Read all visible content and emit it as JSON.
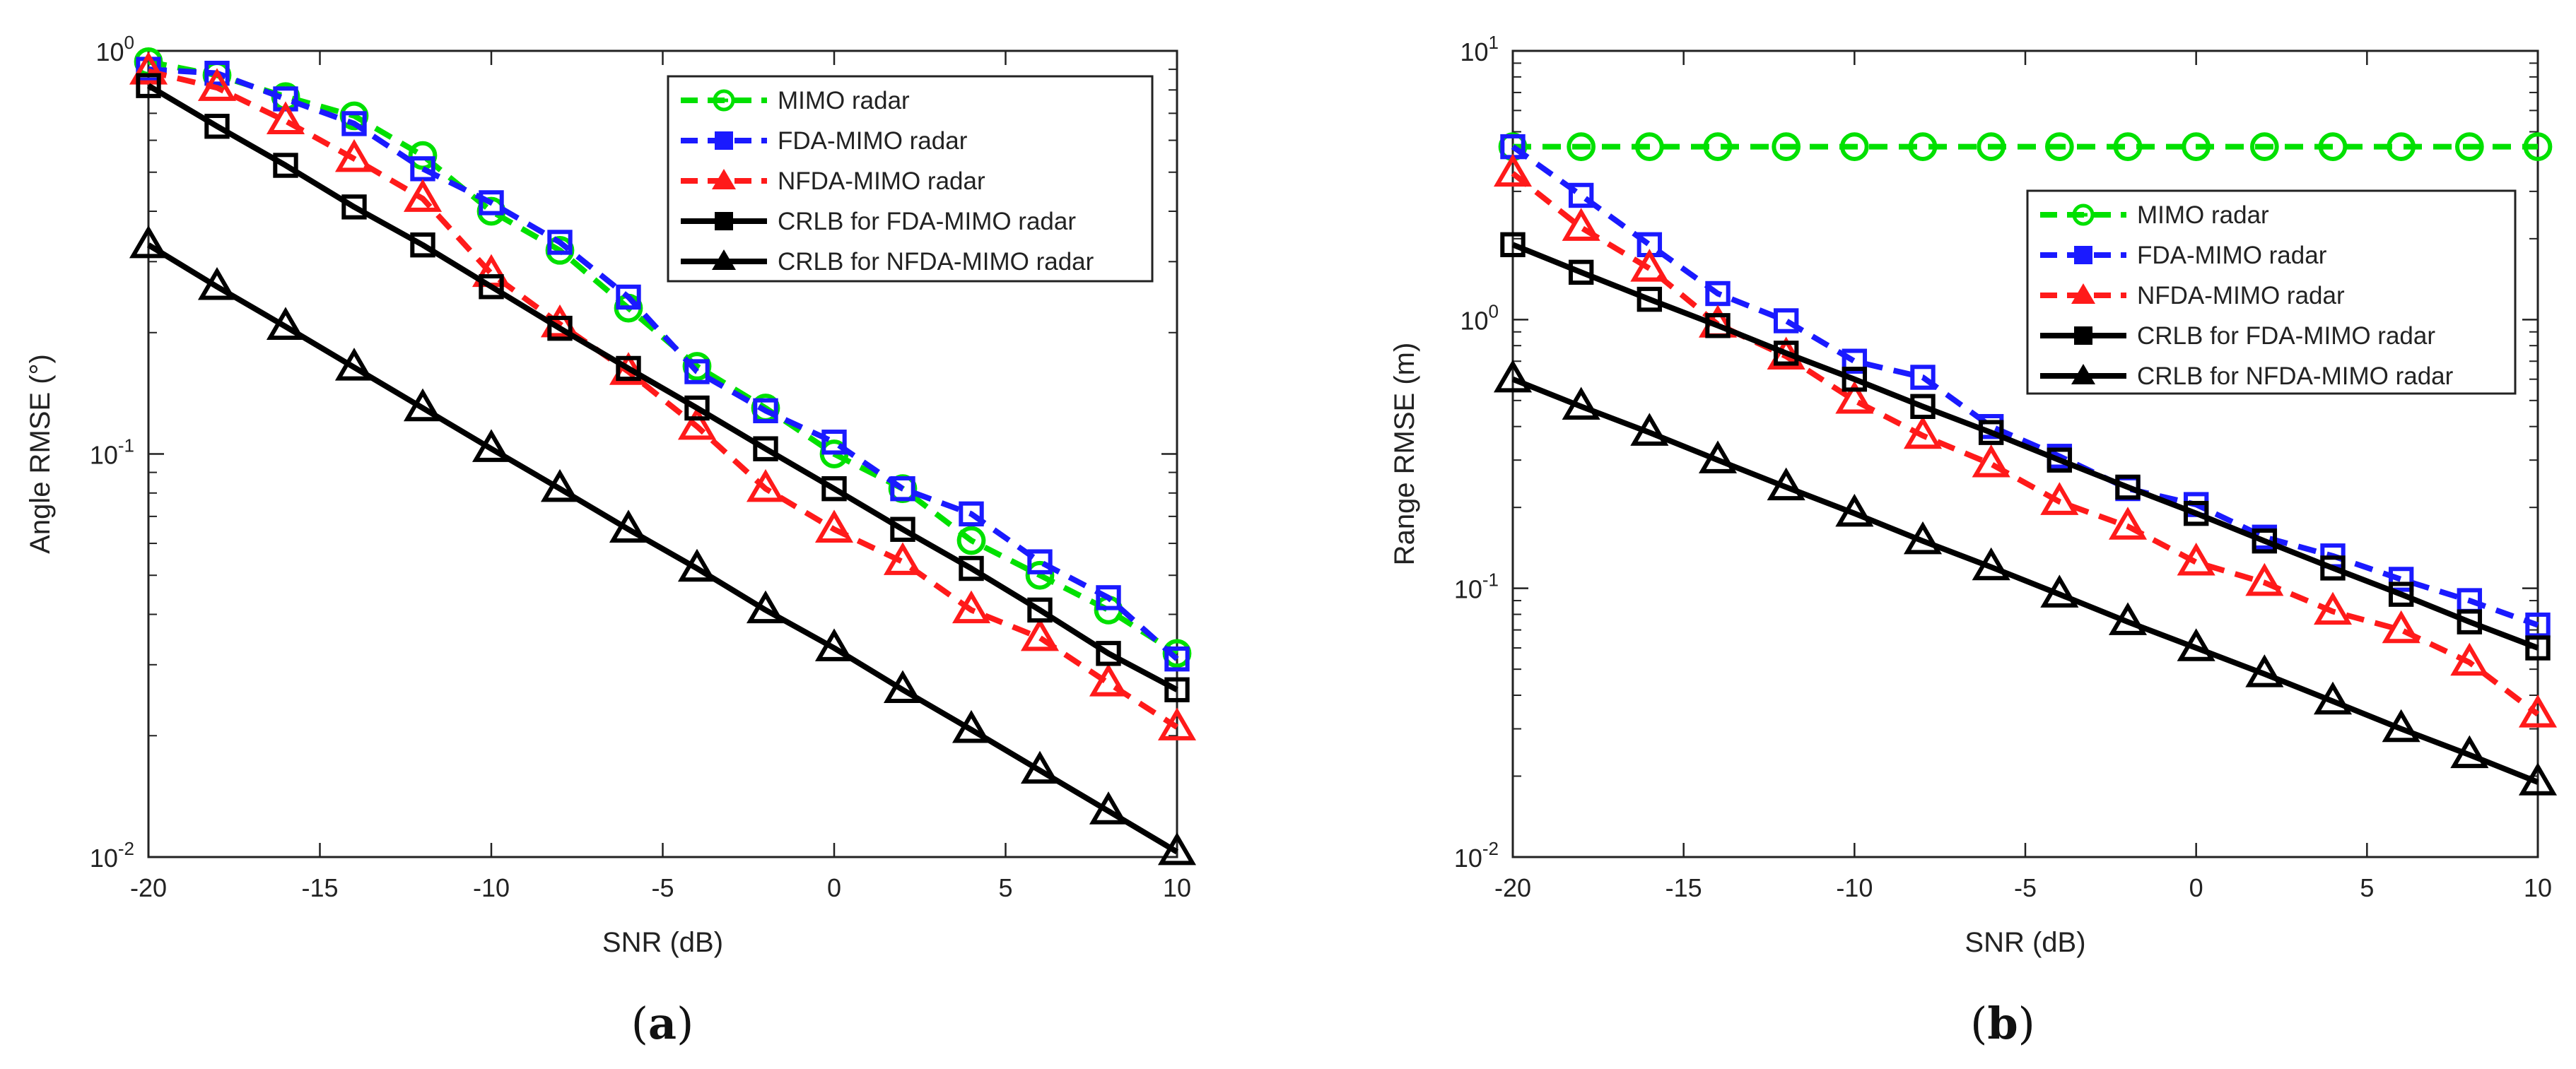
{
  "chart_data": [
    {
      "type": "line",
      "panel_label": "(a)",
      "xlabel": "SNR (dB)",
      "ylabel": "Angle RMSE (°)",
      "xlim": [
        -20,
        10
      ],
      "ylim": [
        0.01,
        1
      ],
      "yscale": "log",
      "grid": false,
      "legend_position": "top-right",
      "x_ticks": [
        -20,
        -15,
        -10,
        -5,
        0,
        5,
        10
      ],
      "x_tick_labels": [
        "-20",
        "-15",
        "-10",
        "-5",
        "0",
        "5",
        "10"
      ],
      "y_ticks": [
        {
          "value": 1,
          "base": "10",
          "exponent": "0"
        },
        {
          "value": 0.1,
          "base": "10",
          "exponent": "-1"
        },
        {
          "value": 0.01,
          "base": "10",
          "exponent": "-2"
        }
      ],
      "x": [
        -20,
        -18,
        -16,
        -14,
        -12,
        -10,
        -8,
        -6,
        -4,
        -2,
        0,
        2,
        4,
        6,
        8,
        10
      ],
      "series": [
        {
          "name": "MIMO radar",
          "color": "#00e000",
          "line_style": "dashed",
          "marker": "circle",
          "values": [
            0.94,
            0.87,
            0.77,
            0.69,
            0.55,
            0.4,
            0.32,
            0.23,
            0.165,
            0.13,
            0.1,
            0.082,
            0.061,
            0.05,
            0.041,
            0.032
          ]
        },
        {
          "name": "FDA-MIMO radar",
          "color": "#1a1aff",
          "line_style": "dashed",
          "marker": "square",
          "values": [
            0.9,
            0.88,
            0.76,
            0.66,
            0.51,
            0.42,
            0.335,
            0.245,
            0.16,
            0.128,
            0.107,
            0.082,
            0.071,
            0.054,
            0.044,
            0.031
          ]
        },
        {
          "name": "NFDA-MIMO radar",
          "color": "#ff1a1a",
          "line_style": "dashed",
          "marker": "triangle",
          "values": [
            0.89,
            0.81,
            0.67,
            0.54,
            0.43,
            0.28,
            0.21,
            0.16,
            0.117,
            0.082,
            0.065,
            0.054,
            0.041,
            0.035,
            0.027,
            0.021
          ]
        },
        {
          "name": "CRLB for FDA-MIMO radar",
          "color": "#000000",
          "line_style": "solid",
          "marker": "square",
          "values": [
            0.82,
            0.65,
            0.52,
            0.41,
            0.33,
            0.26,
            0.205,
            0.163,
            0.13,
            0.103,
            0.082,
            0.065,
            0.052,
            0.041,
            0.032,
            0.026
          ]
        },
        {
          "name": "CRLB for NFDA-MIMO radar",
          "color": "#000000",
          "line_style": "solid",
          "marker": "triangle",
          "values": [
            0.33,
            0.26,
            0.207,
            0.164,
            0.13,
            0.103,
            0.082,
            0.065,
            0.052,
            0.041,
            0.033,
            0.026,
            0.0207,
            0.0164,
            0.013,
            0.0103
          ]
        }
      ]
    },
    {
      "type": "line",
      "panel_label": "(b)",
      "xlabel": "SNR (dB)",
      "ylabel": "Range RMSE (m)",
      "xlim": [
        -20,
        10
      ],
      "ylim": [
        0.01,
        10
      ],
      "yscale": "log",
      "grid": false,
      "legend_position": "right",
      "x_ticks": [
        -20,
        -15,
        -10,
        -5,
        0,
        5,
        10
      ],
      "x_tick_labels": [
        "-20",
        "-15",
        "-10",
        "-5",
        "0",
        "5",
        "10"
      ],
      "y_ticks": [
        {
          "value": 10,
          "base": "10",
          "exponent": "1"
        },
        {
          "value": 1,
          "base": "10",
          "exponent": "0"
        },
        {
          "value": 0.1,
          "base": "10",
          "exponent": "-1"
        },
        {
          "value": 0.01,
          "base": "10",
          "exponent": "-2"
        }
      ],
      "x": [
        -20,
        -18,
        -16,
        -14,
        -12,
        -10,
        -8,
        -6,
        -4,
        -2,
        0,
        2,
        4,
        6,
        8,
        10
      ],
      "series": [
        {
          "name": "MIMO radar",
          "color": "#00e000",
          "line_style": "dashed",
          "marker": "circle",
          "values": [
            4.4,
            4.4,
            4.4,
            4.4,
            4.4,
            4.4,
            4.4,
            4.4,
            4.4,
            4.4,
            4.4,
            4.4,
            4.4,
            4.4,
            4.4,
            4.4
          ]
        },
        {
          "name": "FDA-MIMO radar",
          "color": "#1a1aff",
          "line_style": "dashed",
          "marker": "square",
          "values": [
            4.4,
            2.9,
            1.9,
            1.25,
            0.99,
            0.7,
            0.61,
            0.4,
            0.31,
            0.235,
            0.205,
            0.155,
            0.132,
            0.108,
            0.09,
            0.073
          ]
        },
        {
          "name": "NFDA-MIMO radar",
          "color": "#ff1a1a",
          "line_style": "dashed",
          "marker": "triangle",
          "values": [
            3.5,
            2.2,
            1.55,
            0.96,
            0.73,
            0.5,
            0.37,
            0.29,
            0.21,
            0.17,
            0.125,
            0.105,
            0.082,
            0.07,
            0.053,
            0.034
          ]
        },
        {
          "name": "CRLB for FDA-MIMO radar",
          "color": "#000000",
          "line_style": "solid",
          "marker": "square",
          "values": [
            1.9,
            1.5,
            1.19,
            0.95,
            0.75,
            0.6,
            0.475,
            0.38,
            0.3,
            0.238,
            0.19,
            0.15,
            0.119,
            0.095,
            0.075,
            0.06
          ]
        },
        {
          "name": "CRLB for NFDA-MIMO radar",
          "color": "#000000",
          "line_style": "solid",
          "marker": "triangle",
          "values": [
            0.6,
            0.475,
            0.38,
            0.3,
            0.238,
            0.19,
            0.15,
            0.12,
            0.095,
            0.075,
            0.06,
            0.048,
            0.038,
            0.03,
            0.024,
            0.019
          ]
        }
      ]
    }
  ]
}
